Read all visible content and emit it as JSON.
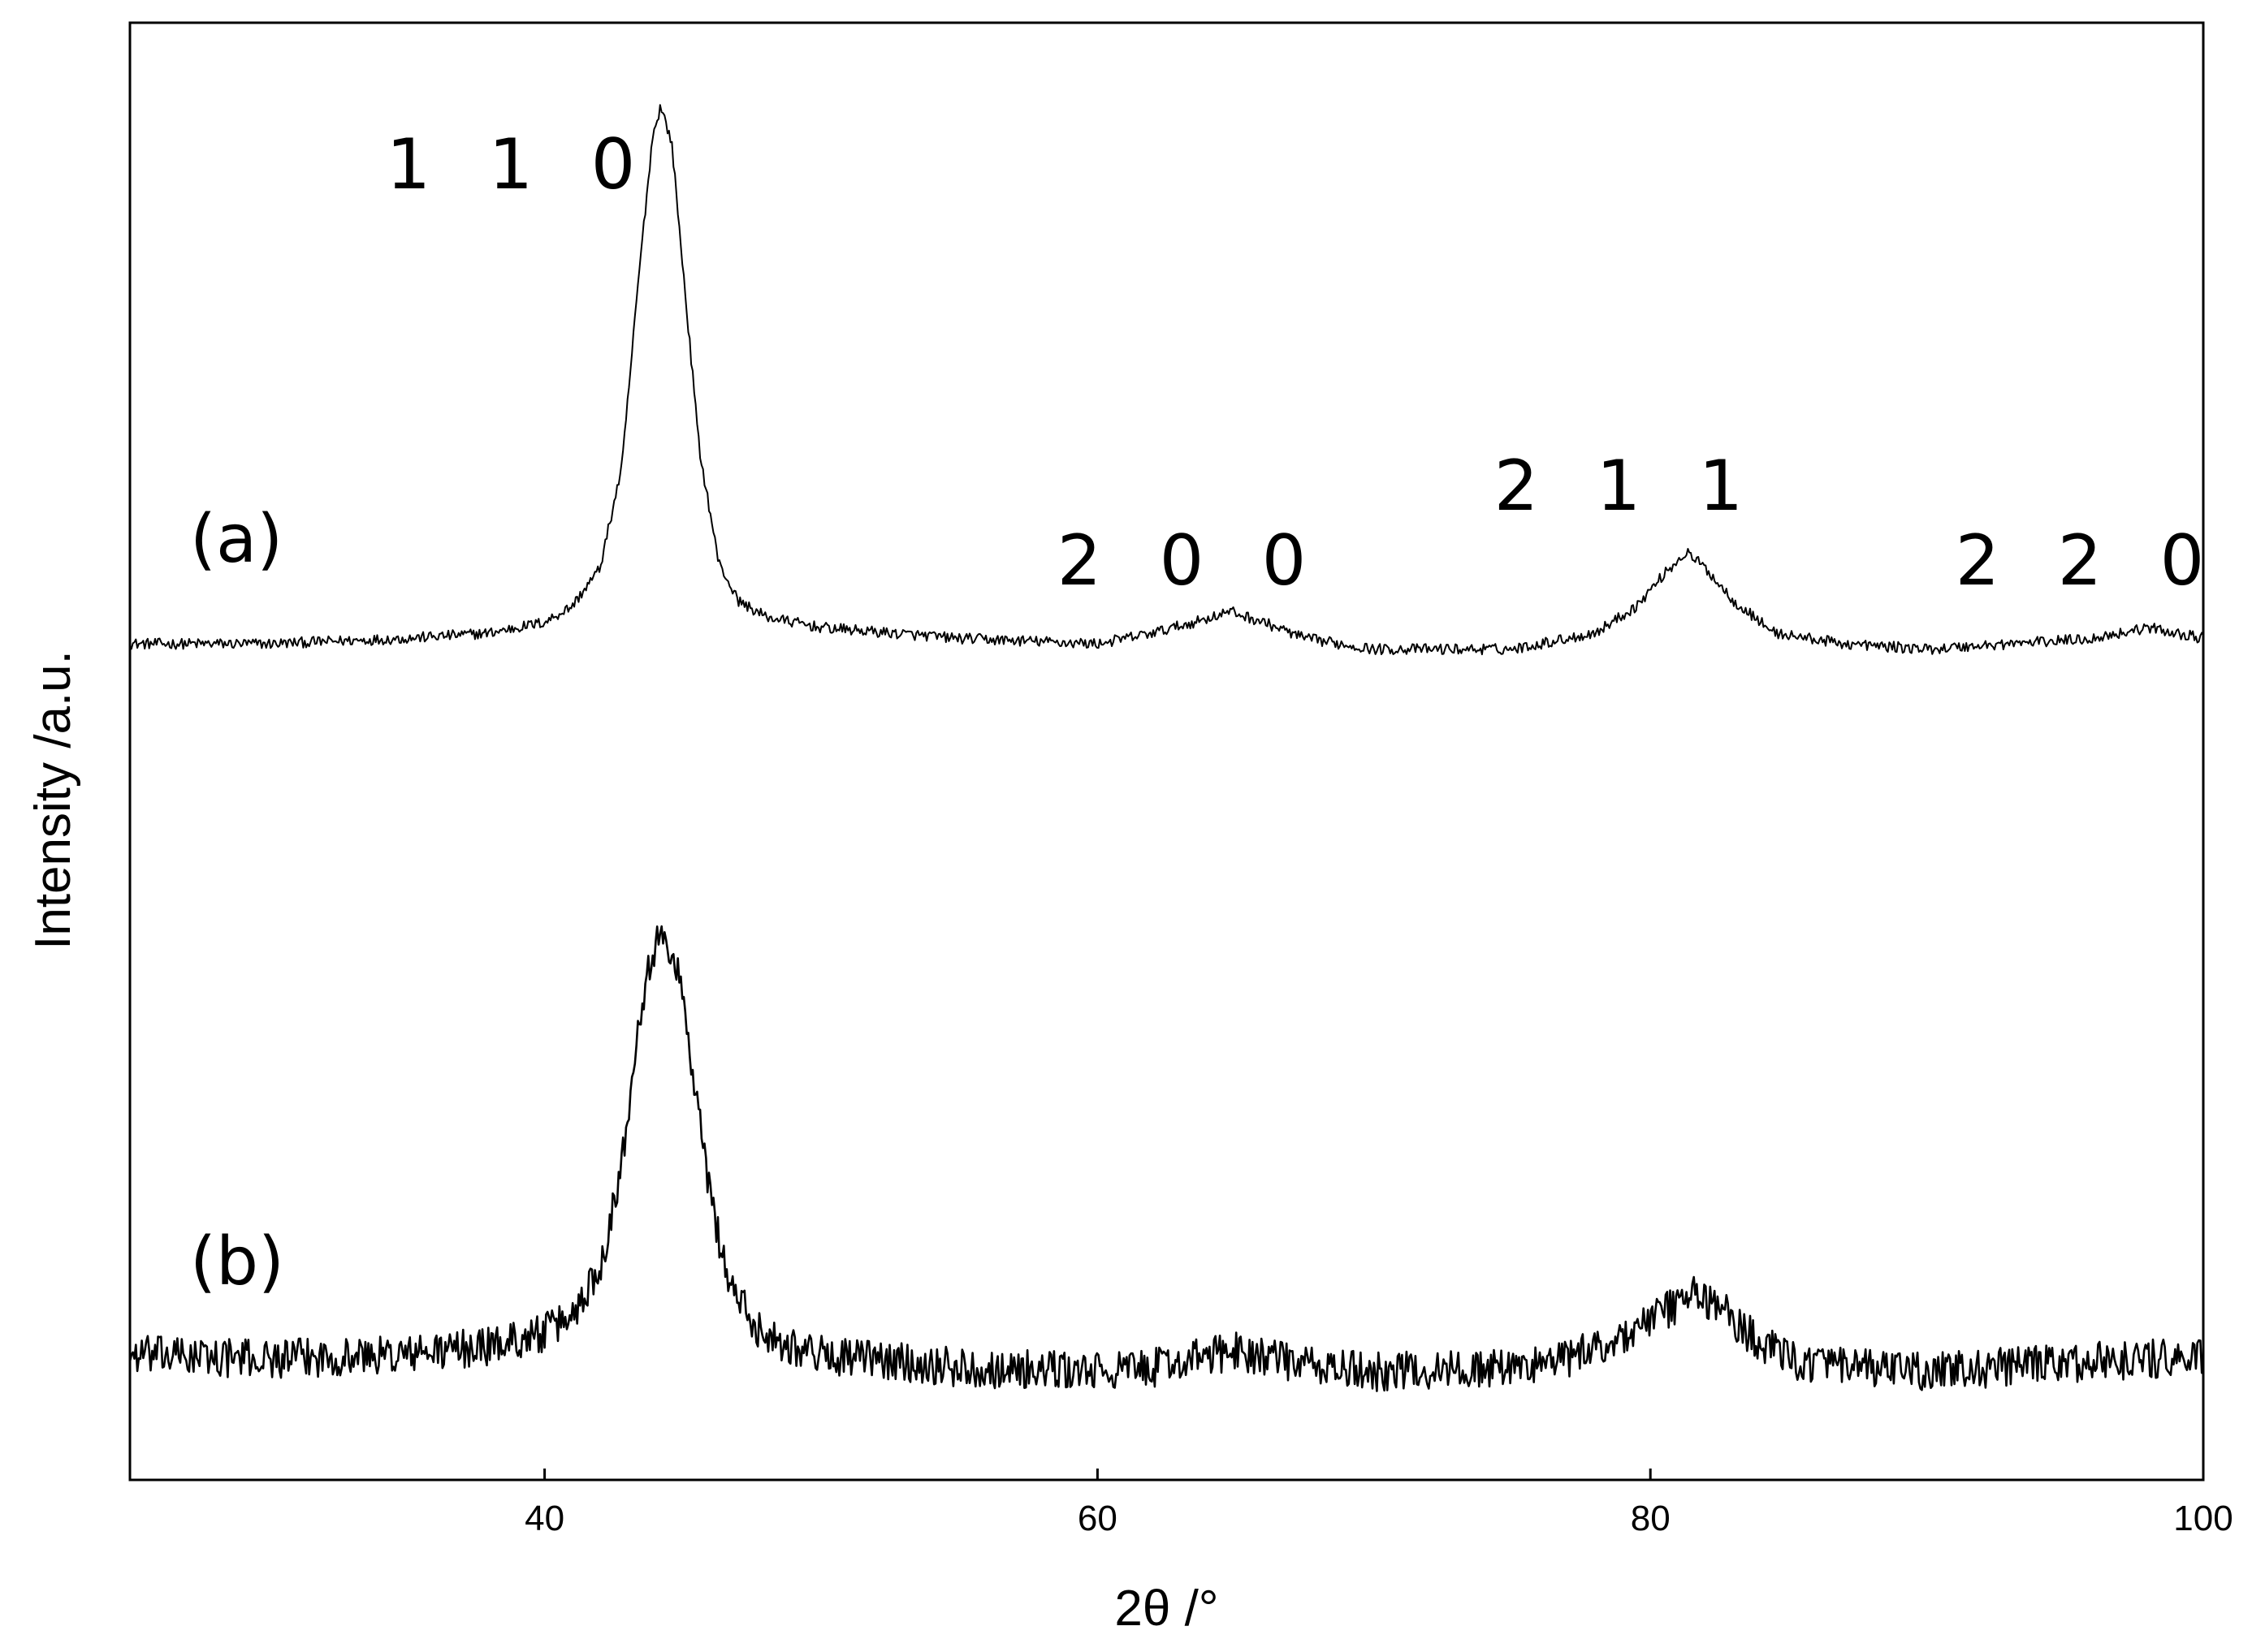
{
  "chart_data": {
    "type": "line",
    "title": "",
    "xlabel": "2θ /°",
    "ylabel": "Intensity /a.u.",
    "xlim": [
      25,
      100
    ],
    "x_ticks": [
      40,
      60,
      80,
      100
    ],
    "x_tick_labels": [
      "40",
      "60",
      "80",
      "100"
    ],
    "y_ticks_shown": false,
    "grid": false,
    "legend": "none",
    "line_color": "#000000",
    "series": [
      {
        "panel_label": "(a)",
        "noise_level": 0.01,
        "points": [
          [
            25,
            0.0
          ],
          [
            30,
            0.0
          ],
          [
            35,
            0.01
          ],
          [
            38,
            0.02
          ],
          [
            40,
            0.04
          ],
          [
            41,
            0.07
          ],
          [
            42,
            0.14
          ],
          [
            42.8,
            0.33
          ],
          [
            43.4,
            0.68
          ],
          [
            43.9,
            0.94
          ],
          [
            44.2,
            1.0
          ],
          [
            44.6,
            0.93
          ],
          [
            45.0,
            0.7
          ],
          [
            45.6,
            0.36
          ],
          [
            46.3,
            0.15
          ],
          [
            47.0,
            0.08
          ],
          [
            48.0,
            0.05
          ],
          [
            50,
            0.03
          ],
          [
            55,
            0.01
          ],
          [
            60,
            0.0
          ],
          [
            62,
            0.02
          ],
          [
            63.5,
            0.04
          ],
          [
            64.8,
            0.06
          ],
          [
            66,
            0.04
          ],
          [
            67.5,
            0.01
          ],
          [
            70,
            -0.01
          ],
          [
            75,
            -0.01
          ],
          [
            78,
            0.02
          ],
          [
            79.5,
            0.07
          ],
          [
            80.5,
            0.13
          ],
          [
            81.3,
            0.17
          ],
          [
            82.0,
            0.14
          ],
          [
            83.0,
            0.08
          ],
          [
            84.5,
            0.02
          ],
          [
            87,
            0.0
          ],
          [
            90,
            -0.01
          ],
          [
            93,
            0.0
          ],
          [
            96,
            0.01
          ],
          [
            98,
            0.03
          ],
          [
            100,
            0.01
          ]
        ]
      },
      {
        "panel_label": "(b)",
        "noise_level": 0.045,
        "points": [
          [
            25,
            0.04
          ],
          [
            30,
            0.03
          ],
          [
            35,
            0.04
          ],
          [
            38,
            0.06
          ],
          [
            40,
            0.09
          ],
          [
            41,
            0.13
          ],
          [
            42,
            0.24
          ],
          [
            42.8,
            0.48
          ],
          [
            43.4,
            0.82
          ],
          [
            43.9,
            0.97
          ],
          [
            44.3,
            1.0
          ],
          [
            44.8,
            0.94
          ],
          [
            45.3,
            0.72
          ],
          [
            45.9,
            0.44
          ],
          [
            46.6,
            0.22
          ],
          [
            47.5,
            0.11
          ],
          [
            48.5,
            0.07
          ],
          [
            50,
            0.04
          ],
          [
            55,
            0.01
          ],
          [
            60,
            0.0
          ],
          [
            62,
            0.01
          ],
          [
            63.5,
            0.03
          ],
          [
            65,
            0.05
          ],
          [
            66.5,
            0.03
          ],
          [
            68,
            0.01
          ],
          [
            70,
            0.0
          ],
          [
            75,
            0.01
          ],
          [
            77,
            0.03
          ],
          [
            79,
            0.08
          ],
          [
            80.5,
            0.14
          ],
          [
            81.6,
            0.18
          ],
          [
            82.5,
            0.15
          ],
          [
            83.5,
            0.09
          ],
          [
            85,
            0.03
          ],
          [
            87,
            0.01
          ],
          [
            90,
            0.0
          ],
          [
            95,
            0.02
          ],
          [
            98,
            0.03
          ],
          [
            100,
            0.03
          ]
        ]
      }
    ],
    "annotations": [
      {
        "text": "1 1 0",
        "x": 44.2
      },
      {
        "text": "2 0 0",
        "x": 64.8
      },
      {
        "text": "2 1 1",
        "x": 81.3
      },
      {
        "text": "2 2 0",
        "x": 98.0
      }
    ]
  }
}
